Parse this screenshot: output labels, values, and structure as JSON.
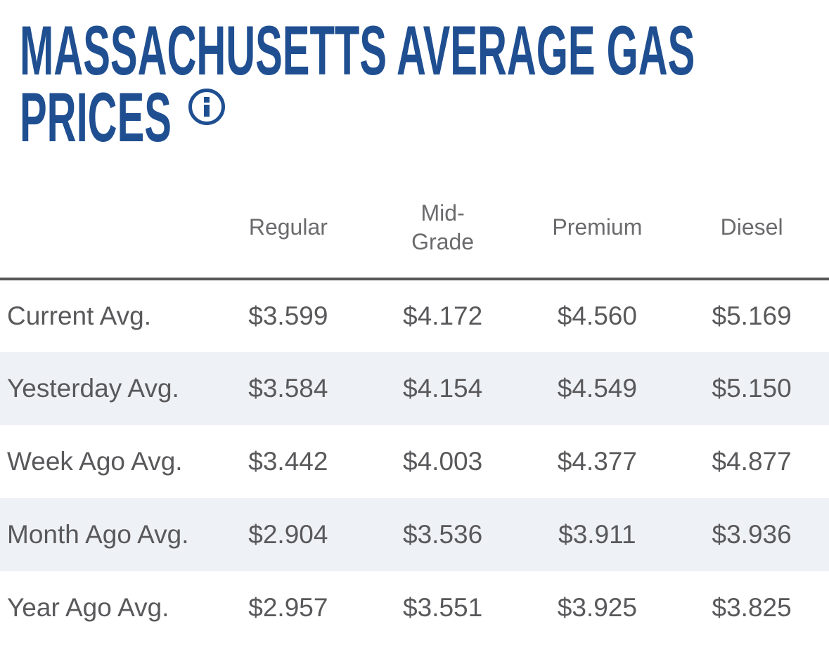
{
  "title": {
    "text": "MASSACHUSETTS AVERAGE GAS PRICES",
    "line1": "MASSACHUSETTS AVERAGE GAS",
    "line2": "PRICES",
    "info_icon": "info-icon"
  },
  "colors": {
    "title_blue": "#1f4f91",
    "header_gray": "#6b6b6e",
    "data_gray": "#59595c",
    "row_shade": "#eef1f5",
    "separator_gray": "#565659"
  },
  "table": {
    "columns": [
      "Regular",
      "Mid-Grade",
      "Premium",
      "Diesel"
    ],
    "rows": [
      {
        "label": "Current Avg.",
        "values": [
          "$3.599",
          "$4.172",
          "$4.560",
          "$5.169"
        ]
      },
      {
        "label": "Yesterday Avg.",
        "values": [
          "$3.584",
          "$4.154",
          "$4.549",
          "$5.150"
        ]
      },
      {
        "label": "Week Ago Avg.",
        "values": [
          "$3.442",
          "$4.003",
          "$4.377",
          "$4.877"
        ]
      },
      {
        "label": "Month Ago Avg.",
        "values": [
          "$2.904",
          "$3.536",
          "$3.911",
          "$3.936"
        ]
      },
      {
        "label": "Year Ago Avg.",
        "values": [
          "$2.957",
          "$3.551",
          "$3.925",
          "$3.825"
        ]
      }
    ]
  },
  "chart_data": {
    "type": "table",
    "title": "Massachusetts Average Gas Prices",
    "columns": [
      "Regular",
      "Mid-Grade",
      "Premium",
      "Diesel"
    ],
    "row_labels": [
      "Current Avg.",
      "Yesterday Avg.",
      "Week Ago Avg.",
      "Month Ago Avg.",
      "Year Ago Avg."
    ],
    "series": [
      {
        "name": "Regular",
        "values": [
          3.599,
          3.584,
          3.442,
          2.904,
          2.957
        ]
      },
      {
        "name": "Mid-Grade",
        "values": [
          4.172,
          4.154,
          4.003,
          3.536,
          3.551
        ]
      },
      {
        "name": "Premium",
        "values": [
          4.56,
          4.549,
          4.377,
          3.911,
          3.925
        ]
      },
      {
        "name": "Diesel",
        "values": [
          5.169,
          5.15,
          4.877,
          3.936,
          3.825
        ]
      }
    ],
    "units": "USD per gallon"
  }
}
